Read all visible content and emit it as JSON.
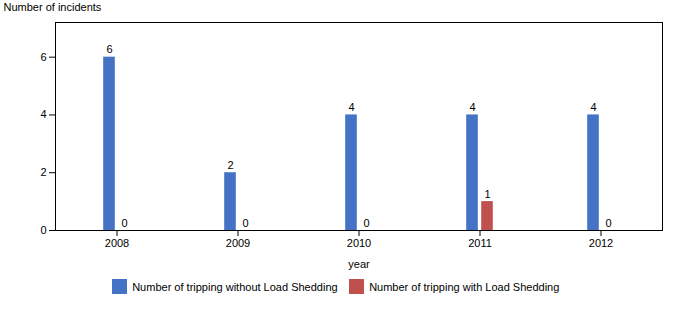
{
  "chart_data": {
    "type": "bar",
    "xlabel": "year",
    "ylabel": "Number of incidents",
    "categories": [
      "2008",
      "2009",
      "2010",
      "2011",
      "2012"
    ],
    "series": [
      {
        "name": "Number of tripping without Load Shedding",
        "color": "#4472C4",
        "values": [
          6,
          2,
          4,
          4,
          4
        ]
      },
      {
        "name": "Number of tripping with Load Shedding",
        "color": "#C0504D",
        "values": [
          0,
          0,
          0,
          1,
          0
        ]
      }
    ],
    "ylim": [
      0,
      7.2
    ],
    "yticks": [
      0,
      2,
      4,
      6
    ],
    "data_labels": true,
    "grid": false,
    "legend": "bottom"
  }
}
